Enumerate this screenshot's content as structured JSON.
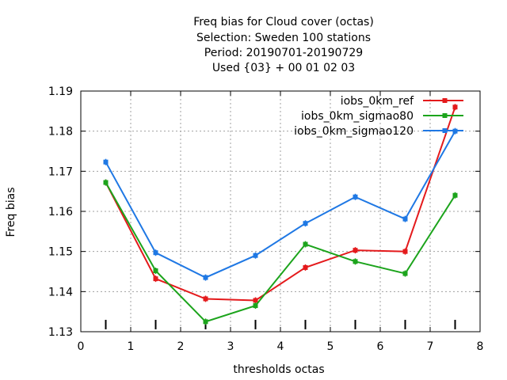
{
  "chart_data": {
    "type": "line",
    "title": [
      "Freq bias  for Cloud cover (octas)",
      "Selection: Sweden    100 stations",
      "Period: 20190701-20190729",
      "Used {03} + 00 01 02 03"
    ],
    "xlabel": "thresholds octas",
    "ylabel": "Freq bias",
    "xlim": [
      0,
      8
    ],
    "ylim": [
      1.13,
      1.19
    ],
    "xticks": [
      "0",
      "1",
      "2",
      "3",
      "4",
      "5",
      "6",
      "7",
      "8"
    ],
    "yticks": [
      "1.13",
      "1.14",
      "1.15",
      "1.16",
      "1.17",
      "1.18",
      "1.19"
    ],
    "grid": true,
    "legend_position": "top-right",
    "x": [
      0.5,
      1.5,
      2.5,
      3.5,
      4.5,
      5.5,
      6.5,
      7.5
    ],
    "series": [
      {
        "name": "iobs_0km_ref",
        "color": "#e41a1c",
        "values": [
          1.1672,
          1.1432,
          1.1382,
          1.1378,
          1.146,
          1.1503,
          1.15,
          1.186
        ]
      },
      {
        "name": "iobs_0km_sigmao80",
        "color": "#1ca41c",
        "values": [
          1.1672,
          1.1452,
          1.1325,
          1.1365,
          1.1518,
          1.1475,
          1.1445,
          1.164
        ]
      },
      {
        "name": "iobs_0km_sigmao120",
        "color": "#1f78e4",
        "values": [
          1.1723,
          1.1497,
          1.1435,
          1.149,
          1.157,
          1.1636,
          1.1581,
          1.18
        ]
      }
    ]
  }
}
